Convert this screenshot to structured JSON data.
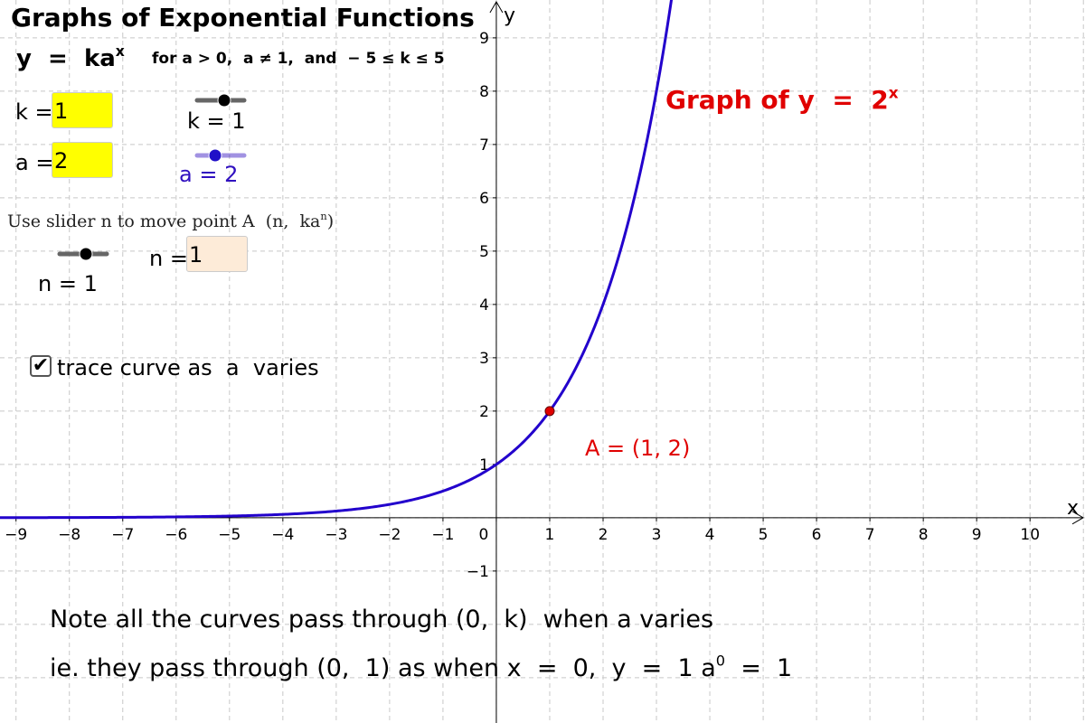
{
  "header": {
    "title": "Graphs of Exponential Functions",
    "formula": {
      "base": "y  =  ka",
      "exp": "x"
    },
    "condition": "for a > 0,  a ≠ 1,  and  − 5 ≤ k ≤ 5"
  },
  "inputs": {
    "k": {
      "label": "k =",
      "value": 1
    },
    "a": {
      "label": "a =",
      "value": 2
    },
    "n": {
      "label": "n =",
      "value": 1
    }
  },
  "sliders": {
    "k": "k = 1",
    "a": "a = 2",
    "n": "n = 1"
  },
  "instruction": {
    "text": "Use slider n to move point A  (n,  ka",
    "exp": "n",
    "end": ")"
  },
  "checkbox": {
    "label": "trace curve as  a  varies",
    "checked": true
  },
  "graph": {
    "xlim": [
      -9.3,
      11.03
    ],
    "ylim": [
      -3.85,
      9.71
    ],
    "grid_step": 1,
    "xticks": [
      {
        "value": -9,
        "label": "−9"
      },
      {
        "value": -8,
        "label": "−8"
      },
      {
        "value": -7,
        "label": "−7"
      },
      {
        "value": -6,
        "label": "−6"
      },
      {
        "value": -5,
        "label": "−5"
      },
      {
        "value": -4,
        "label": "−4"
      },
      {
        "value": -3,
        "label": "−3"
      },
      {
        "value": -2,
        "label": "−2"
      },
      {
        "value": -1,
        "label": "−1"
      },
      0,
      1,
      2,
      3,
      4,
      5,
      6,
      7,
      8,
      9,
      10
    ],
    "yticks": [
      {
        "value": -1,
        "label": "−1"
      },
      1,
      2,
      3,
      4,
      5,
      6,
      7,
      8,
      9
    ],
    "xlabel": "x",
    "ylabel": "y",
    "curve_color": "#2200cc",
    "curve_label": {
      "text": "Graph of y  =  2",
      "exp": "x",
      "color": "#e00000"
    },
    "point": {
      "label": "A = (1, 2)",
      "x": 1,
      "y": 2,
      "color": "#e00000"
    }
  },
  "notes": {
    "line1": "Note all the curves pass through (0,  k)  when a varies",
    "line2": {
      "text": "ie. they pass through (0,  1) as when x  =  0,  y  =  1 a",
      "exp": "0",
      "end": "  =  1"
    }
  }
}
